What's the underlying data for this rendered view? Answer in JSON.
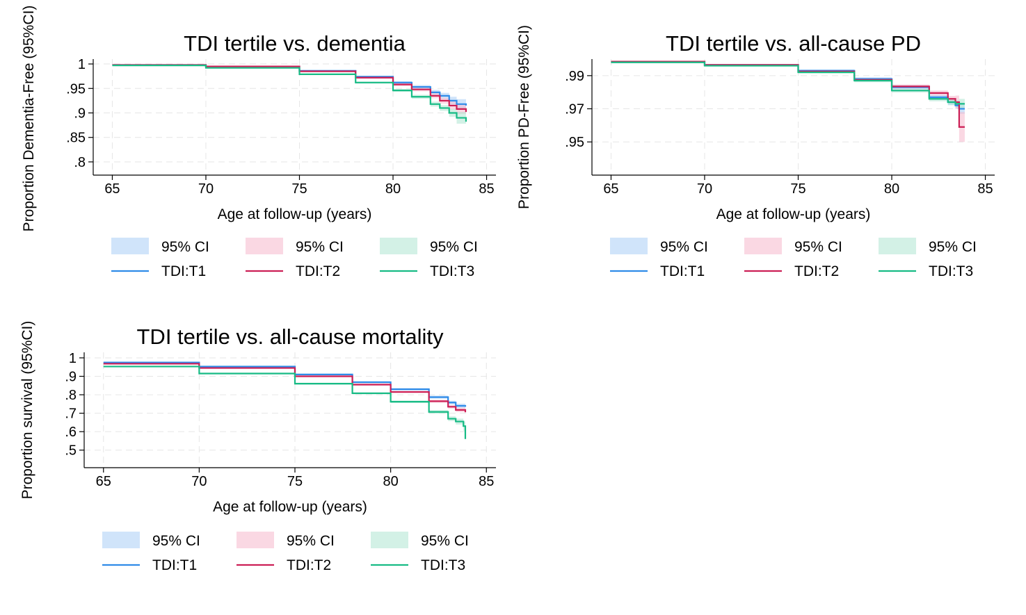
{
  "colors": {
    "T1": "#2f8be8",
    "T1_ci": "#a9cdf5",
    "T2": "#cc1f55",
    "T2_ci": "#f5b8cc",
    "T3": "#17bb85",
    "T3_ci": "#aee5d2"
  },
  "legend": {
    "ci_label": "95% CI",
    "series_labels": [
      "TDI:T1",
      "TDI:T2",
      "TDI:T3"
    ]
  },
  "chart_data": [
    {
      "type": "line",
      "title": "TDI tertile vs. dementia",
      "xlabel": "Age at follow-up (years)",
      "ylabel": "Proportion Dementia-Free (95%CI)",
      "xlim": [
        64.5,
        85.5
      ],
      "ylim": [
        0.79,
        1.01
      ],
      "xticks": [
        65,
        70,
        75,
        80,
        85
      ],
      "xtick_labels": [
        "65",
        "70",
        "75",
        "80",
        "85"
      ],
      "yticks": [
        1,
        0.95,
        0.9,
        0.85,
        0.8
      ],
      "ytick_labels": [
        "1",
        ".95",
        ".9",
        ".85",
        ".8"
      ],
      "grid": true,
      "legend_position": "bottom",
      "series": [
        {
          "name": "TDI:T1",
          "x": [
            65,
            70,
            75,
            78,
            80,
            81,
            82,
            82.5,
            83,
            83.4,
            83.9
          ],
          "y": [
            0.998,
            0.995,
            0.986,
            0.974,
            0.962,
            0.953,
            0.942,
            0.935,
            0.925,
            0.918,
            0.915
          ],
          "ci_width": [
            0.0005,
            0.001,
            0.0015,
            0.002,
            0.003,
            0.004,
            0.005,
            0.006,
            0.008,
            0.01,
            0.012
          ]
        },
        {
          "name": "TDI:T2",
          "x": [
            65,
            70,
            75,
            78,
            80,
            81,
            82,
            82.5,
            83,
            83.4,
            83.9
          ],
          "y": [
            0.998,
            0.995,
            0.985,
            0.972,
            0.958,
            0.948,
            0.935,
            0.925,
            0.915,
            0.908,
            0.902
          ],
          "ci_width": [
            0.0005,
            0.001,
            0.0015,
            0.002,
            0.003,
            0.004,
            0.005,
            0.006,
            0.008,
            0.01,
            0.012
          ]
        },
        {
          "name": "TDI:T3",
          "x": [
            65,
            70,
            75,
            78,
            80,
            81,
            82,
            82.5,
            83,
            83.4,
            83.9
          ],
          "y": [
            0.997,
            0.992,
            0.979,
            0.962,
            0.946,
            0.933,
            0.918,
            0.91,
            0.9,
            0.89,
            0.882
          ],
          "ci_width": [
            0.0005,
            0.001,
            0.0015,
            0.002,
            0.003,
            0.004,
            0.005,
            0.006,
            0.008,
            0.012,
            0.017
          ]
        }
      ]
    },
    {
      "type": "line",
      "title": "TDI tertile vs. all-cause PD",
      "xlabel": "Age at follow-up (years)",
      "ylabel": "Proportion PD-Free (95%CI)",
      "xlim": [
        64.5,
        85.5
      ],
      "ylim": [
        0.935,
        1.0
      ],
      "xticks": [
        65,
        70,
        75,
        80,
        85
      ],
      "xtick_labels": [
        "65",
        "70",
        "75",
        "80",
        "85"
      ],
      "yticks": [
        0.99,
        0.97,
        0.95
      ],
      "ytick_labels": [
        ".99",
        ".97",
        ".95"
      ],
      "grid": true,
      "legend_position": "bottom",
      "series": [
        {
          "name": "TDI:T1",
          "x": [
            65,
            70,
            75,
            78,
            80,
            82,
            83,
            83.4,
            83.6,
            83.9
          ],
          "y": [
            0.9985,
            0.9965,
            0.993,
            0.988,
            0.983,
            0.977,
            0.974,
            0.972,
            0.97,
            0.97
          ],
          "ci_width": [
            0.0003,
            0.0005,
            0.0007,
            0.001,
            0.0012,
            0.0015,
            0.0018,
            0.002,
            0.003,
            0.005
          ]
        },
        {
          "name": "TDI:T2",
          "x": [
            65,
            70,
            75,
            78,
            80,
            82,
            83,
            83.4,
            83.6,
            83.9
          ],
          "y": [
            0.9985,
            0.9965,
            0.9925,
            0.9875,
            0.9835,
            0.9795,
            0.976,
            0.974,
            0.959,
            0.959
          ],
          "ci_width": [
            0.0003,
            0.0005,
            0.0007,
            0.001,
            0.0012,
            0.0015,
            0.0018,
            0.004,
            0.009,
            0.018
          ]
        },
        {
          "name": "TDI:T3",
          "x": [
            65,
            70,
            75,
            78,
            80,
            82,
            83,
            83.4,
            83.6,
            83.9
          ],
          "y": [
            0.998,
            0.996,
            0.992,
            0.987,
            0.981,
            0.976,
            0.974,
            0.973,
            0.973,
            0.973
          ],
          "ci_width": [
            0.0003,
            0.0005,
            0.0007,
            0.001,
            0.0012,
            0.0015,
            0.0018,
            0.002,
            0.003,
            0.004
          ]
        }
      ]
    },
    {
      "type": "line",
      "title": "TDI tertile vs. all-cause mortality",
      "xlabel": "Age at follow-up (years)",
      "ylabel": "Proportion survival (95%CI)",
      "xlim": [
        64.5,
        85.5
      ],
      "ylim": [
        0.45,
        1.03
      ],
      "xticks": [
        65,
        70,
        75,
        80,
        85
      ],
      "xtick_labels": [
        "65",
        "70",
        "75",
        "80",
        "85"
      ],
      "yticks": [
        1,
        0.9,
        0.8,
        0.7,
        0.6,
        0.5
      ],
      "ytick_labels": [
        "1",
        ".9",
        ".8",
        ".7",
        ".6",
        ".5"
      ],
      "grid": true,
      "legend_position": "bottom",
      "series": [
        {
          "name": "TDI:T1",
          "x": [
            65,
            70,
            75,
            78,
            80,
            82,
            83,
            83.4,
            83.9
          ],
          "y": [
            0.975,
            0.953,
            0.91,
            0.868,
            0.83,
            0.787,
            0.758,
            0.74,
            0.735
          ],
          "ci_width": [
            0.003,
            0.003,
            0.004,
            0.005,
            0.006,
            0.008,
            0.01,
            0.012,
            0.015
          ]
        },
        {
          "name": "TDI:T2",
          "x": [
            65,
            70,
            75,
            78,
            80,
            82,
            83,
            83.4,
            83.9
          ],
          "y": [
            0.968,
            0.945,
            0.9,
            0.855,
            0.815,
            0.765,
            0.735,
            0.718,
            0.705
          ],
          "ci_width": [
            0.003,
            0.003,
            0.004,
            0.005,
            0.006,
            0.008,
            0.01,
            0.012,
            0.017
          ]
        },
        {
          "name": "TDI:T3",
          "x": [
            65,
            70,
            75,
            78,
            80,
            82,
            83,
            83.4,
            83.8,
            83.9
          ],
          "y": [
            0.953,
            0.915,
            0.86,
            0.808,
            0.762,
            0.707,
            0.67,
            0.655,
            0.63,
            0.56
          ],
          "ci_width": [
            0.003,
            0.004,
            0.005,
            0.006,
            0.007,
            0.01,
            0.013,
            0.016,
            0.025,
            0.05
          ]
        }
      ]
    }
  ]
}
